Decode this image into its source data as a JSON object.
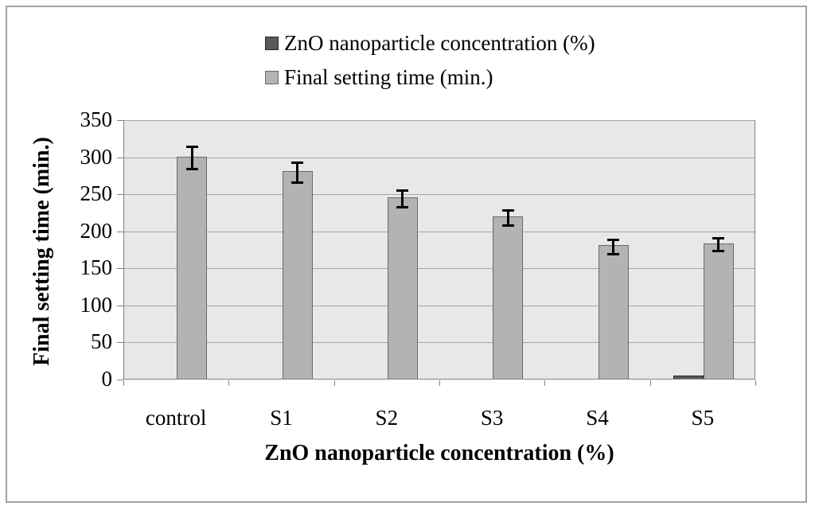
{
  "figure": {
    "background": "#ffffff",
    "frame_border_color": "#a3a3a3"
  },
  "chart_data": {
    "type": "bar",
    "title": "",
    "categories": [
      "control",
      "S1",
      "S2",
      "S3",
      "S4",
      "S5"
    ],
    "series": [
      {
        "name": "ZnO nanoparticle concentration (%)",
        "color": "#595959",
        "border_color": "#262626",
        "values": [
          0,
          0,
          0,
          0,
          0,
          4
        ],
        "errors": [
          0,
          0,
          0,
          0,
          0,
          0
        ]
      },
      {
        "name": "Final setting time (min.)",
        "color": "#b3b3b3",
        "border_color": "#696969",
        "values": [
          300,
          280,
          245,
          219,
          180,
          183
        ],
        "errors": [
          16,
          14,
          12,
          11,
          10,
          9
        ]
      }
    ],
    "xlabel": "ZnO nanoparticle concentration (%)",
    "ylabel": "Final setting time (min.)",
    "ylim": [
      0,
      350
    ],
    "ytick_step": 50,
    "grid": true,
    "legend_position": "top-center",
    "plot_background": "#e8e8e8",
    "gridline_color": "#a6a6a6",
    "axis_color": "#808080",
    "error_bar_color": "#000000"
  }
}
